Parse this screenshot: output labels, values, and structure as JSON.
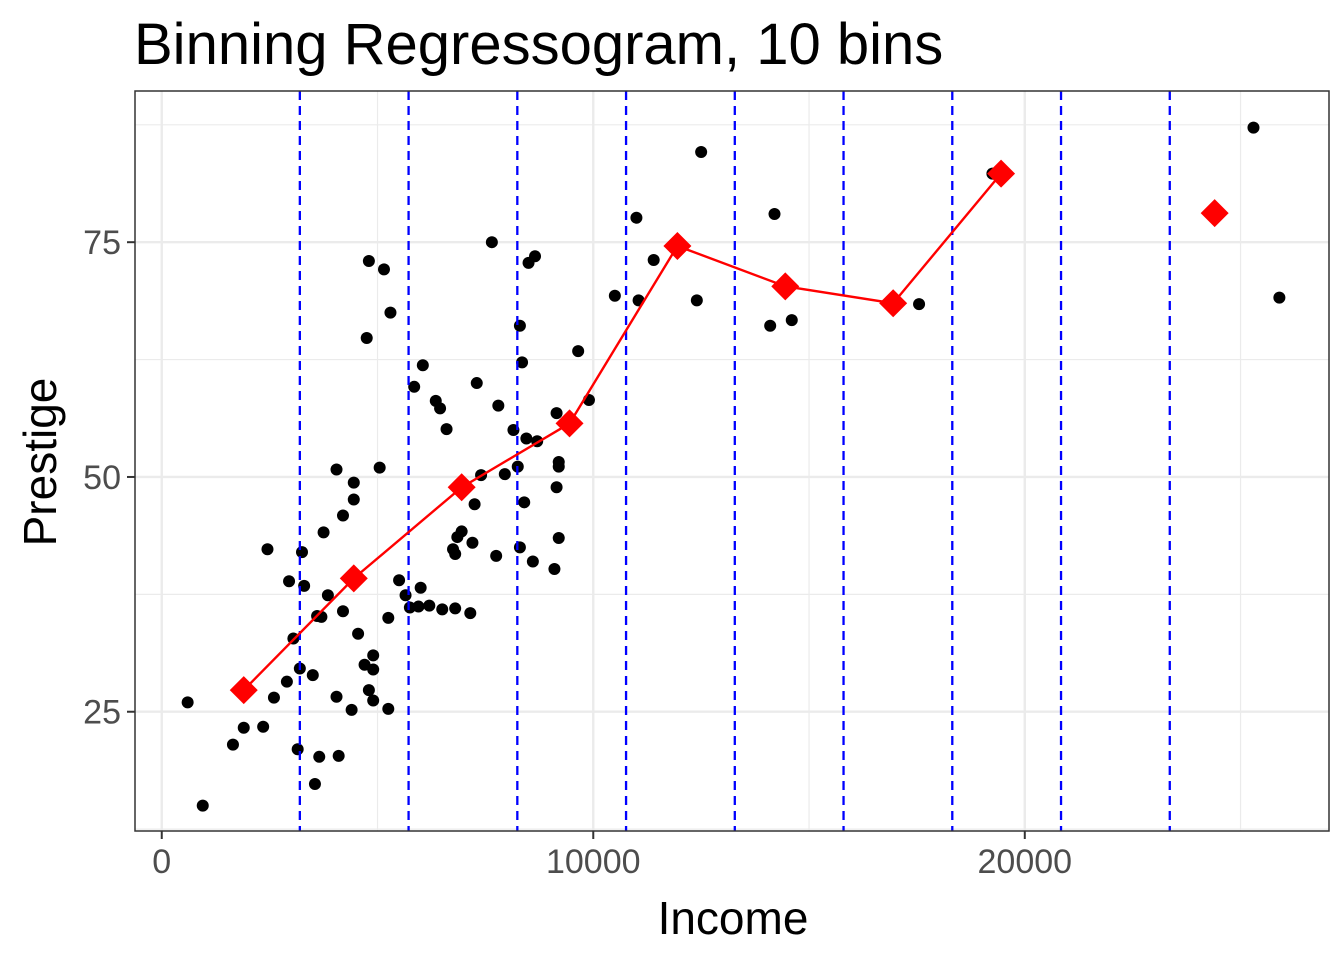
{
  "chart_data": {
    "type": "scatter",
    "title": "Binning Regressogram, 10 bins",
    "xlabel": "Income",
    "ylabel": "Prestige",
    "xlim": [
      -620,
      27050
    ],
    "ylim": [
      12.3,
      91.1
    ],
    "x_ticks": [
      0,
      10000,
      20000
    ],
    "x_tick_labels": [
      "0",
      "10000",
      "20000"
    ],
    "y_ticks": [
      25,
      50,
      75
    ],
    "y_tick_labels": [
      "25",
      "50",
      "75"
    ],
    "grid": true,
    "legend": "none",
    "colors": {
      "points": "#000000",
      "bin_lines": "#0000ff",
      "regressogram": "#ff0000",
      "panel_border": "#333333",
      "grid": "#ebebeb"
    },
    "bin_breaks": [
      3200,
      5720,
      8240,
      10760,
      13280,
      15800,
      18320,
      20840,
      23360
    ],
    "observations": [
      [
        600,
        26
      ],
      [
        950,
        15
      ],
      [
        1650,
        21.5
      ],
      [
        1900,
        23.3
      ],
      [
        2350,
        23.4
      ],
      [
        2450,
        42.3
      ],
      [
        2600,
        26.5
      ],
      [
        2900,
        28.2
      ],
      [
        2950,
        38.9
      ],
      [
        3050,
        32.8
      ],
      [
        3150,
        21
      ],
      [
        3200,
        29.6
      ],
      [
        3250,
        42
      ],
      [
        3300,
        38.4
      ],
      [
        3500,
        28.9
      ],
      [
        3550,
        17.3
      ],
      [
        3600,
        35.2
      ],
      [
        3650,
        20.2
      ],
      [
        3700,
        35.1
      ],
      [
        3750,
        44.1
      ],
      [
        3850,
        37.4
      ],
      [
        4050,
        26.6
      ],
      [
        4100,
        20.3
      ],
      [
        4050,
        50.8
      ],
      [
        4200,
        45.9
      ],
      [
        4200,
        35.7
      ],
      [
        4400,
        25.2
      ],
      [
        4450,
        47.6
      ],
      [
        4450,
        49.4
      ],
      [
        4550,
        33.3
      ],
      [
        4700,
        30
      ],
      [
        4750,
        64.8
      ],
      [
        4800,
        73
      ],
      [
        4800,
        27.3
      ],
      [
        4900,
        26.2
      ],
      [
        4900,
        29.5
      ],
      [
        4900,
        31
      ],
      [
        5050,
        51
      ],
      [
        5150,
        72.1
      ],
      [
        5250,
        35
      ],
      [
        5250,
        25.3
      ],
      [
        5300,
        67.5
      ],
      [
        5500,
        39
      ],
      [
        5650,
        37.4
      ],
      [
        5750,
        36.1
      ],
      [
        5850,
        59.6
      ],
      [
        5950,
        36.2
      ],
      [
        6000,
        38.2
      ],
      [
        6050,
        61.9
      ],
      [
        6200,
        36.3
      ],
      [
        6350,
        58.1
      ],
      [
        6450,
        57.3
      ],
      [
        6500,
        35.9
      ],
      [
        6600,
        55.1
      ],
      [
        6750,
        42.3
      ],
      [
        6800,
        41.8
      ],
      [
        6800,
        36
      ],
      [
        6850,
        43.6
      ],
      [
        6950,
        44.2
      ],
      [
        7150,
        35.5
      ],
      [
        7200,
        43
      ],
      [
        7250,
        47.1
      ],
      [
        7300,
        60
      ],
      [
        7400,
        50.2
      ],
      [
        7650,
        75
      ],
      [
        7750,
        41.6
      ],
      [
        7800,
        57.6
      ],
      [
        7950,
        50.3
      ],
      [
        8150,
        55
      ],
      [
        8250,
        51.1
      ],
      [
        8300,
        42.5
      ],
      [
        8300,
        66.1
      ],
      [
        8350,
        62.2
      ],
      [
        8400,
        47.3
      ],
      [
        8450,
        54.1
      ],
      [
        8500,
        72.8
      ],
      [
        8600,
        41
      ],
      [
        8650,
        73.5
      ],
      [
        8700,
        53.8
      ],
      [
        9100,
        40.2
      ],
      [
        9150,
        48.9
      ],
      [
        9150,
        56.8
      ],
      [
        9200,
        51.6
      ],
      [
        9200,
        51.1
      ],
      [
        9200,
        43.5
      ],
      [
        9650,
        63.4
      ],
      [
        9900,
        58.2
      ],
      [
        10500,
        69.3
      ],
      [
        11000,
        77.6
      ],
      [
        11050,
        68.8
      ],
      [
        11400,
        73.1
      ],
      [
        12400,
        68.8
      ],
      [
        12500,
        84.6
      ],
      [
        14100,
        66.1
      ],
      [
        14200,
        78
      ],
      [
        14600,
        66.7
      ],
      [
        17550,
        68.4
      ],
      [
        19250,
        82.3
      ],
      [
        25300,
        87.2
      ],
      [
        25900,
        69.1
      ]
    ],
    "regressogram": {
      "x": [
        1900,
        4450,
        6950,
        9450,
        11950,
        14450,
        16950,
        19450,
        24400
      ],
      "y": [
        27.3,
        39.2,
        48.9,
        55.7,
        74.6,
        70.3,
        68.5,
        82.3,
        78.1
      ],
      "connected_points": 8
    }
  }
}
